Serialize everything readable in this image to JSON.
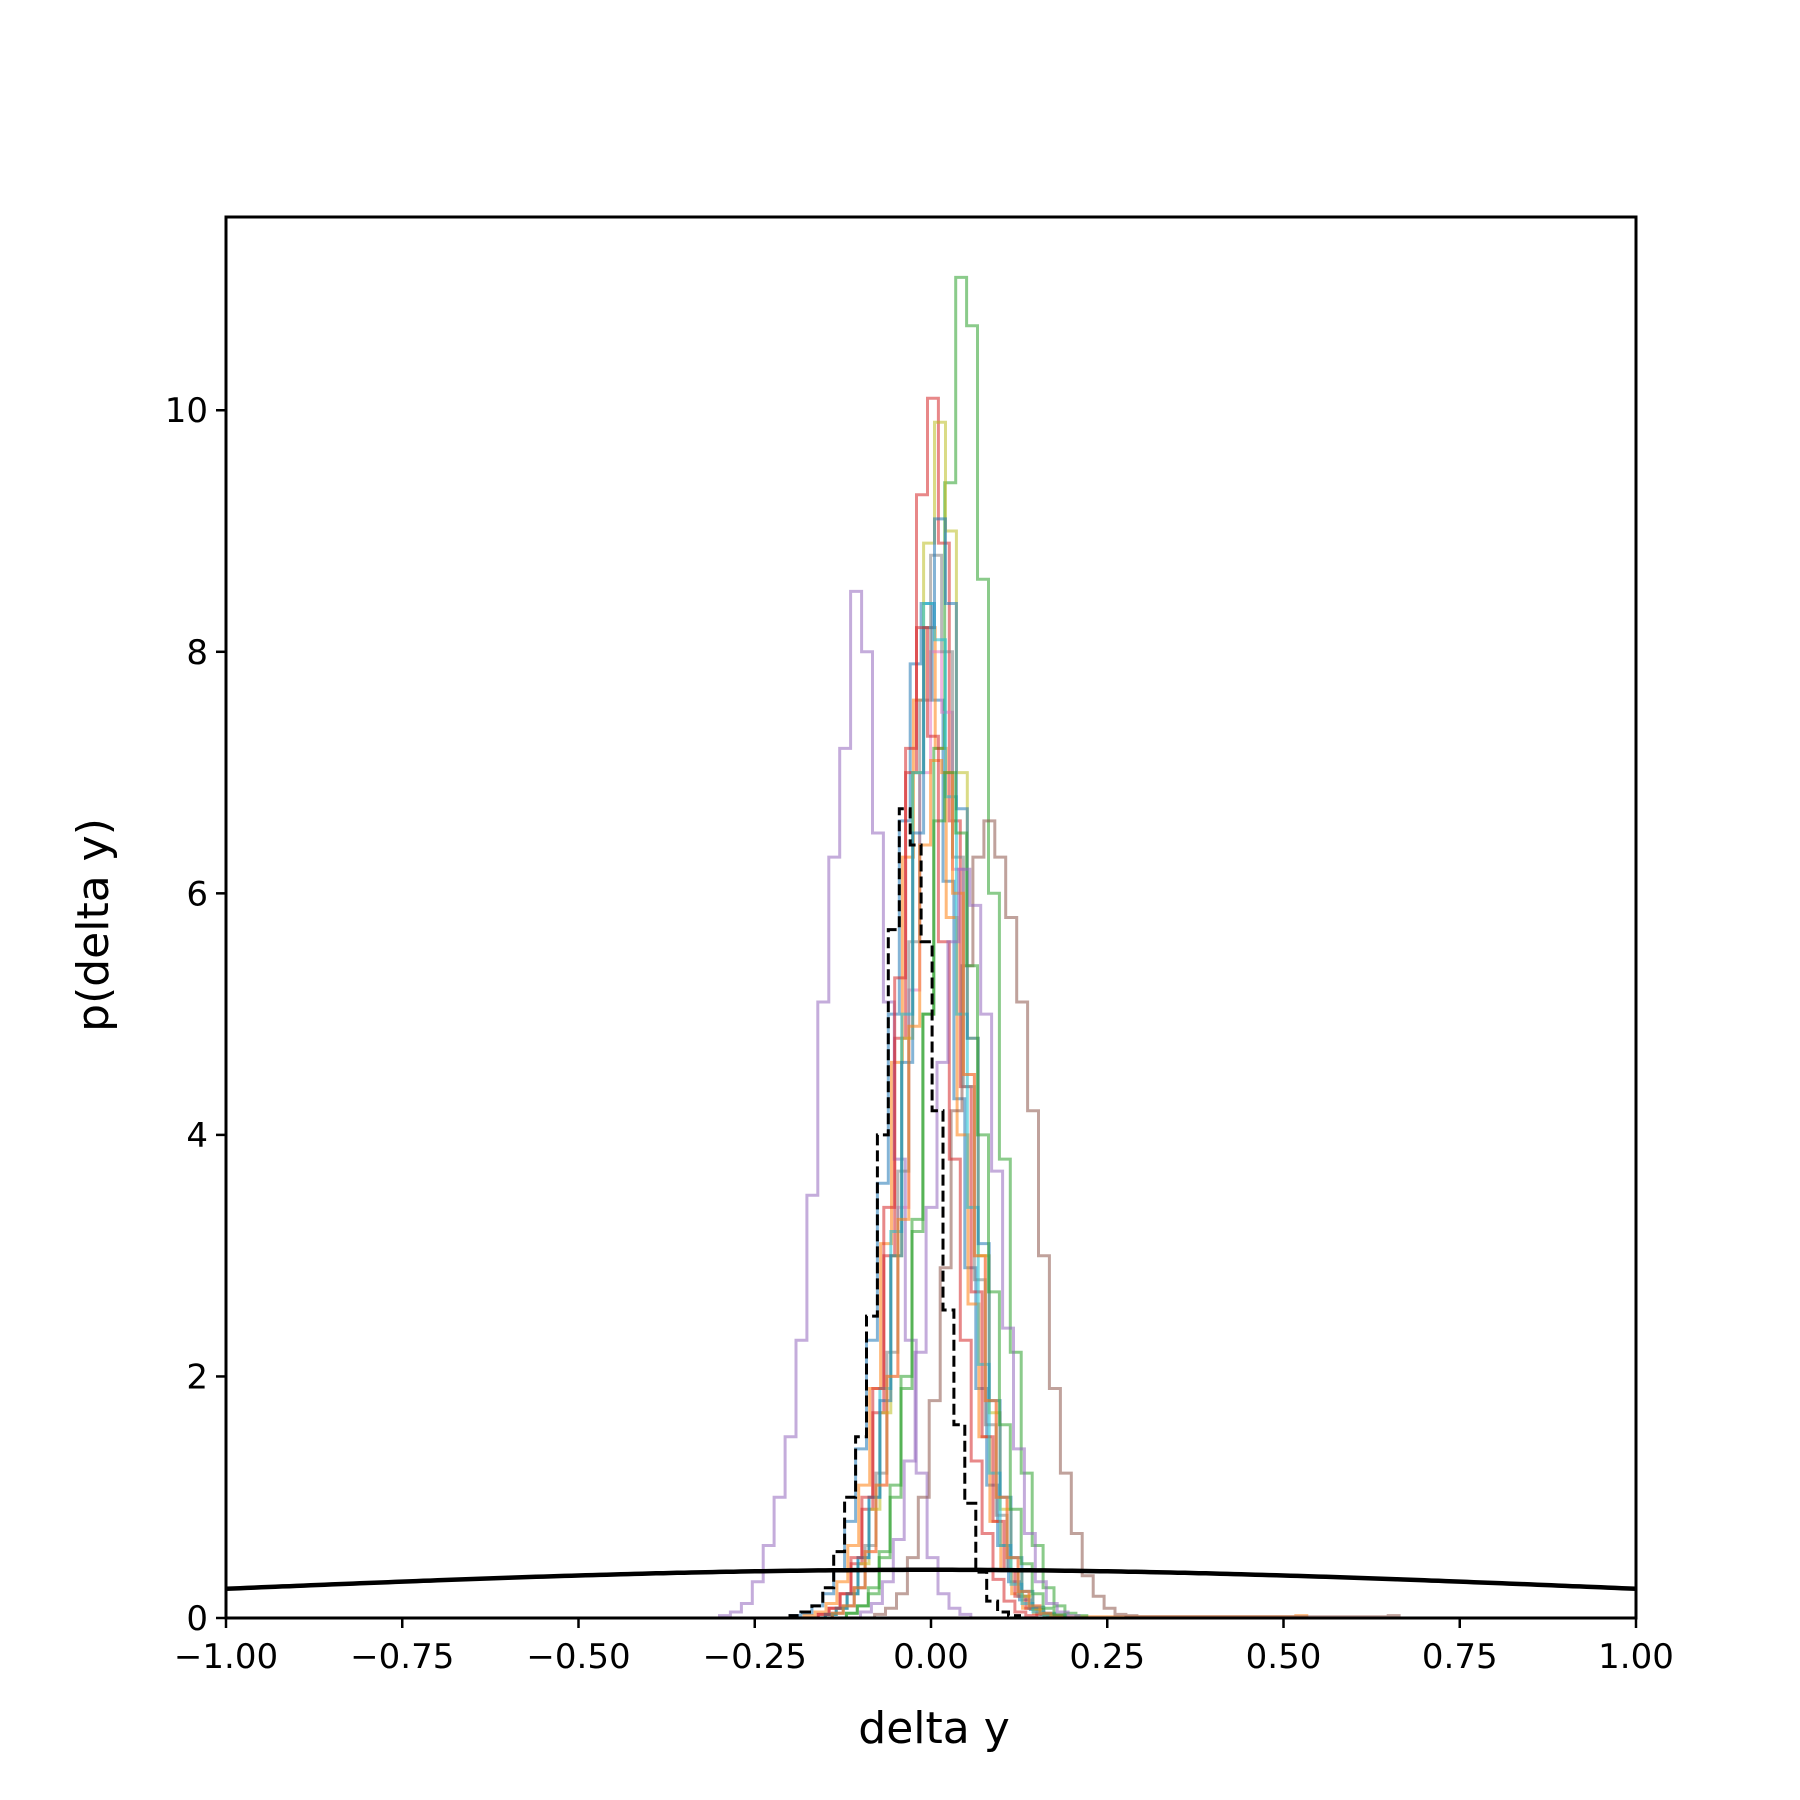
{
  "chart_data": {
    "type": "histogram",
    "title": "",
    "xlabel": "delta y",
    "ylabel": "p(delta y)",
    "xlim": [
      -1.0,
      1.0
    ],
    "ylim": [
      0,
      11.6
    ],
    "xticks": [
      -1.0,
      -0.75,
      -0.5,
      -0.25,
      0.0,
      0.25,
      0.5,
      0.75,
      1.0
    ],
    "xtick_labels": [
      "−1.00",
      "−0.75",
      "−0.50",
      "−0.25",
      "0.00",
      "0.25",
      "0.50",
      "0.75",
      "1.00"
    ],
    "yticks": [
      0,
      2,
      4,
      6,
      8,
      10
    ],
    "ytick_labels": [
      "0",
      "2",
      "4",
      "6",
      "8",
      "10"
    ],
    "grid": false,
    "legend": "none",
    "bin_width": 0.0155,
    "series": [
      {
        "color": "#1f77b4",
        "style": "solid",
        "alpha": 0.55,
        "bin_start": -0.2,
        "values": [
          0.02,
          0.04,
          0.1,
          0.2,
          0.4,
          0.8,
          1.4,
          2.3,
          3.6,
          5.0,
          6.6,
          7.9,
          8.4,
          7.6,
          6.1,
          4.3,
          2.9,
          1.9,
          1.1,
          0.6,
          0.3,
          0.15,
          0.07,
          0.03,
          0.01
        ]
      },
      {
        "color": "#ff7f0e",
        "style": "solid",
        "alpha": 0.55,
        "bin_start": -0.18,
        "values": [
          0.02,
          0.05,
          0.12,
          0.3,
          0.6,
          1.1,
          1.9,
          3.1,
          4.6,
          6.3,
          7.6,
          8.2,
          7.2,
          5.8,
          4.0,
          2.6,
          1.5,
          0.8,
          0.4,
          0.2,
          0.08,
          0.04,
          0.02,
          0.01,
          0.01,
          0.01,
          0.01,
          0.01,
          0.01,
          0.01,
          0.01,
          0.01,
          0.01,
          0.01,
          0.01,
          0.01,
          0.01,
          0.01,
          0.01,
          0.01,
          0.01,
          0.01,
          0.01,
          0.01,
          0.01,
          0.02
        ]
      },
      {
        "color": "#2ca02c",
        "style": "solid",
        "alpha": 0.55,
        "bin_start": -0.12,
        "values": [
          0.04,
          0.1,
          0.2,
          0.5,
          1.0,
          1.9,
          3.2,
          5.0,
          7.2,
          9.4,
          11.1,
          10.7,
          8.6,
          6.0,
          3.8,
          2.2,
          1.2,
          0.6,
          0.25,
          0.1,
          0.04,
          0.02
        ]
      },
      {
        "color": "#d62728",
        "style": "solid",
        "alpha": 0.55,
        "bin_start": -0.16,
        "values": [
          0.03,
          0.08,
          0.2,
          0.45,
          0.9,
          1.7,
          3.0,
          4.8,
          7.0,
          9.3,
          10.1,
          8.9,
          6.6,
          4.4,
          2.7,
          1.5,
          0.8,
          0.4,
          0.18,
          0.08,
          0.03,
          0.01
        ]
      },
      {
        "color": "#9467bd",
        "style": "solid",
        "alpha": 0.55,
        "bin_start": -0.3,
        "values": [
          0.02,
          0.05,
          0.12,
          0.3,
          0.6,
          1.0,
          1.5,
          2.3,
          3.5,
          5.1,
          6.3,
          7.2,
          8.5,
          8.0,
          6.5,
          5.1,
          3.8,
          2.3,
          1.2,
          0.5,
          0.2,
          0.08,
          0.03
        ]
      },
      {
        "color": "#8c564b",
        "style": "solid",
        "alpha": 0.55,
        "bin_start": -0.08,
        "values": [
          0.03,
          0.08,
          0.2,
          0.5,
          1.0,
          1.8,
          2.9,
          4.2,
          5.4,
          6.3,
          6.6,
          6.3,
          5.8,
          5.1,
          4.2,
          3.0,
          1.9,
          1.2,
          0.7,
          0.35,
          0.18,
          0.08,
          0.03,
          0.02,
          0.01,
          0.01,
          0.01,
          0.01,
          0.01,
          0.01,
          0.01,
          0.01,
          0.01,
          0.01,
          0.01,
          0.01,
          0.01,
          0.01,
          0.01,
          0.01,
          0.01,
          0.01,
          0.01,
          0.01,
          0.01,
          0.01,
          0.01,
          0.02
        ]
      },
      {
        "color": "#e377c2",
        "style": "solid",
        "alpha": 0.55,
        "bin_start": -0.14,
        "values": [
          0.04,
          0.1,
          0.25,
          0.55,
          1.1,
          2.0,
          3.4,
          5.2,
          7.0,
          8.0,
          7.5,
          6.2,
          4.5,
          3.0,
          1.8,
          1.0,
          0.5,
          0.22,
          0.1,
          0.04,
          0.02
        ]
      },
      {
        "color": "#7f7f7f",
        "style": "solid",
        "alpha": 0.55,
        "bin_start": -0.14,
        "values": [
          0.04,
          0.1,
          0.25,
          0.6,
          1.2,
          2.2,
          3.7,
          5.6,
          7.6,
          8.8,
          8.0,
          6.3,
          4.4,
          2.8,
          1.6,
          0.85,
          0.4,
          0.18,
          0.08,
          0.03
        ]
      },
      {
        "color": "#bcbd22",
        "style": "solid",
        "alpha": 0.55,
        "bin_start": -0.15,
        "values": [
          0.03,
          0.08,
          0.2,
          0.45,
          0.9,
          1.7,
          3.0,
          4.8,
          7.0,
          8.9,
          9.9,
          9.0,
          7.0,
          4.8,
          3.0,
          1.7,
          0.9,
          0.4,
          0.18,
          0.07,
          0.03,
          0.01
        ]
      },
      {
        "color": "#17becf",
        "style": "solid",
        "alpha": 0.55,
        "bin_start": -0.15,
        "values": [
          0.03,
          0.08,
          0.2,
          0.5,
          1.0,
          1.9,
          3.2,
          5.0,
          7.0,
          8.4,
          8.1,
          6.8,
          5.0,
          3.4,
          2.1,
          1.2,
          0.6,
          0.28,
          0.12,
          0.05,
          0.02
        ]
      },
      {
        "color": "#1f77b4",
        "style": "solid",
        "alpha": 0.55,
        "bin_start": -0.15,
        "values": [
          0.03,
          0.08,
          0.2,
          0.5,
          1.0,
          1.8,
          3.0,
          4.6,
          6.5,
          8.2,
          9.1,
          8.4,
          6.7,
          4.8,
          3.1,
          1.8,
          1.0,
          0.5,
          0.22,
          0.09,
          0.04,
          0.02
        ]
      },
      {
        "color": "#ff7f0e",
        "style": "solid",
        "alpha": 0.55,
        "bin_start": -0.14,
        "values": [
          0.04,
          0.1,
          0.25,
          0.55,
          1.1,
          2.0,
          3.3,
          4.9,
          6.4,
          7.1,
          7.0,
          6.0,
          4.5,
          3.0,
          1.8,
          1.0,
          0.5,
          0.22,
          0.1,
          0.04,
          0.02
        ]
      },
      {
        "color": "#2ca02c",
        "style": "solid",
        "alpha": 0.55,
        "bin_start": -0.12,
        "values": [
          0.04,
          0.1,
          0.25,
          0.55,
          1.1,
          2.0,
          3.3,
          5.0,
          6.6,
          7.0,
          6.5,
          5.4,
          4.0,
          2.7,
          1.6,
          0.9,
          0.45,
          0.2,
          0.08,
          0.03
        ]
      },
      {
        "color": "#d62728",
        "style": "solid",
        "alpha": 0.55,
        "bin_start": -0.16,
        "values": [
          0.03,
          0.08,
          0.2,
          0.5,
          1.0,
          1.9,
          3.4,
          5.3,
          7.2,
          8.2,
          7.3,
          5.6,
          3.8,
          2.3,
          1.3,
          0.7,
          0.32,
          0.14,
          0.05,
          0.02
        ]
      },
      {
        "color": "#9467bd",
        "style": "solid",
        "alpha": 0.55,
        "bin_start": -0.1,
        "values": [
          0.05,
          0.12,
          0.3,
          0.65,
          1.3,
          2.2,
          3.4,
          4.6,
          5.6,
          6.2,
          5.9,
          5.0,
          3.7,
          2.4,
          1.4,
          0.7,
          0.3,
          0.12,
          0.05,
          0.02
        ]
      },
      {
        "color": "#000000",
        "style": "dashed",
        "alpha": 1.0,
        "bin_start": -0.2,
        "values": [
          0.02,
          0.05,
          0.1,
          0.25,
          0.55,
          1.0,
          1.5,
          2.5,
          4.0,
          5.7,
          6.7,
          6.4,
          5.6,
          4.2,
          2.55,
          1.6,
          0.95,
          0.38,
          0.14,
          0.05,
          0.02
        ]
      }
    ],
    "reference_curve": {
      "label": "",
      "color": "#000000",
      "type": "normal_pdf",
      "mean": 0.0,
      "sd": 1.0
    }
  }
}
